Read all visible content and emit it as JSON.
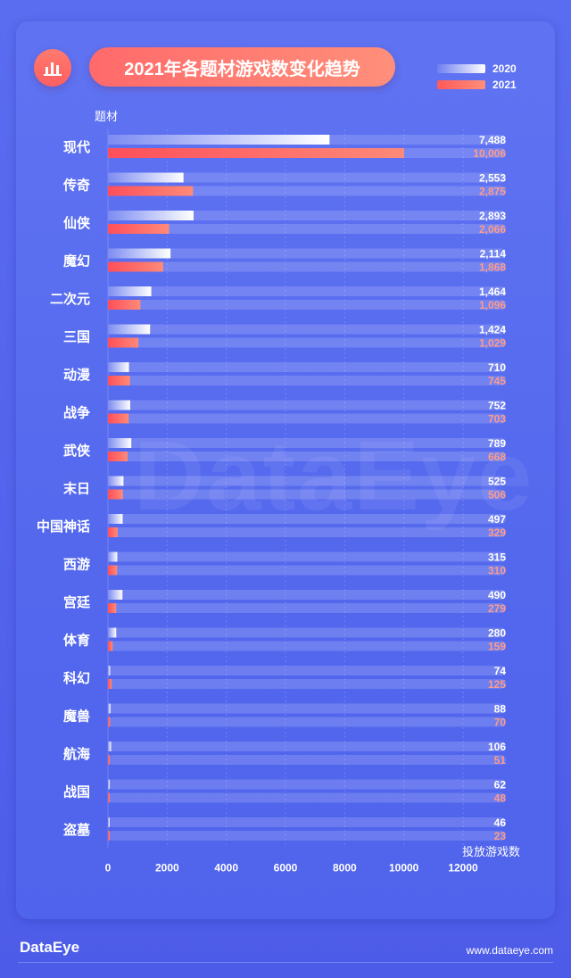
{
  "title": "2021年各题材游戏数变化趋势",
  "y_axis_label": "题材",
  "x_axis_label": "投放游戏数",
  "watermark": "DataEye",
  "footer": {
    "brand": "DataEye",
    "url": "www.dataeye.com"
  },
  "colors": {
    "series_2020": "#e9ecff",
    "series_2021": "#ff6a5c",
    "label_2020": "#ffffff",
    "label_2021": "#ff9a8a"
  },
  "chart_data": {
    "type": "bar",
    "orientation": "horizontal",
    "ylabel": "题材",
    "xlabel": "投放游戏数",
    "xlim": [
      0,
      12000
    ],
    "x_ticks": [
      0,
      2000,
      4000,
      6000,
      8000,
      10000,
      12000
    ],
    "categories": [
      "现代",
      "传奇",
      "仙侠",
      "魔幻",
      "二次元",
      "三国",
      "动漫",
      "战争",
      "武侠",
      "末日",
      "中国神话",
      "西游",
      "宫廷",
      "体育",
      "科幻",
      "魔兽",
      "航海",
      "战国",
      "盗墓"
    ],
    "series": [
      {
        "name": "2020",
        "values": [
          7488,
          2553,
          2893,
          2114,
          1464,
          1424,
          710,
          752,
          789,
          525,
          497,
          315,
          490,
          280,
          74,
          88,
          106,
          62,
          46
        ],
        "labels": [
          "7,488",
          "2,553",
          "2,893",
          "2,114",
          "1,464",
          "1,424",
          "710",
          "752",
          "789",
          "525",
          "497",
          "315",
          "490",
          "280",
          "74",
          "88",
          "106",
          "62",
          "46"
        ]
      },
      {
        "name": "2021",
        "values": [
          10006,
          2875,
          2066,
          1868,
          1096,
          1029,
          745,
          703,
          668,
          506,
          329,
          310,
          279,
          159,
          125,
          70,
          51,
          48,
          23
        ],
        "labels": [
          "10,006",
          "2,875",
          "2,066",
          "1,868",
          "1,096",
          "1,029",
          "745",
          "703",
          "668",
          "506",
          "329",
          "310",
          "279",
          "159",
          "125",
          "70",
          "51",
          "48",
          "23"
        ]
      }
    ],
    "grid": true,
    "legend_position": "top-right"
  }
}
